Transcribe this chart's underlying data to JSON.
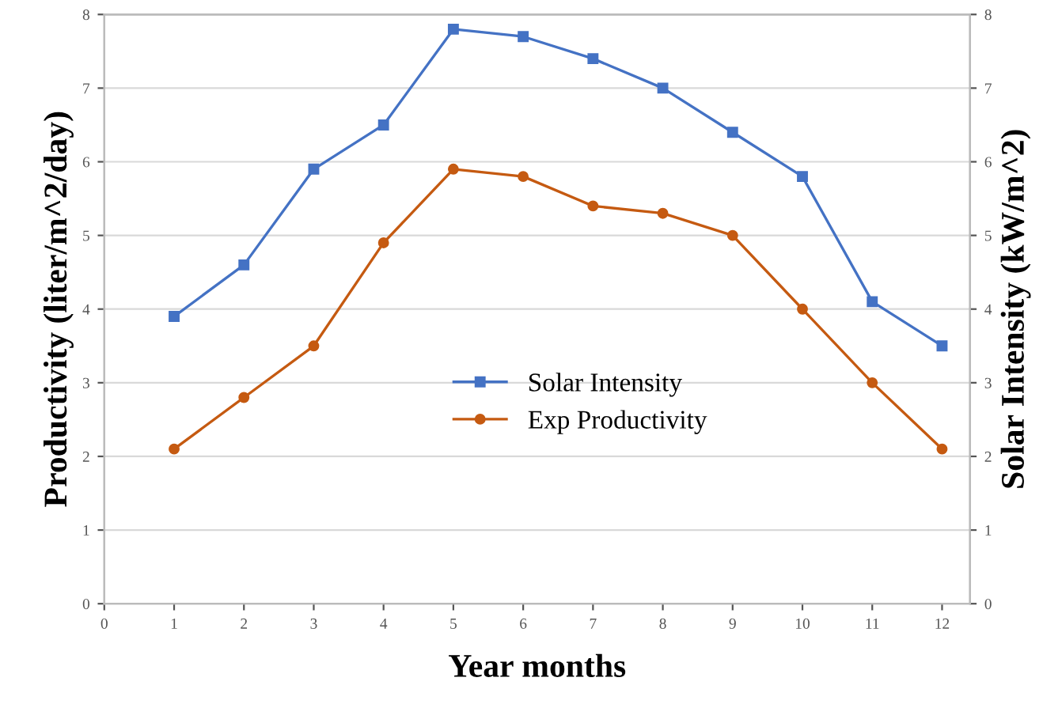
{
  "chart_data": {
    "type": "line",
    "xlabel": "Year months",
    "ylabel": "Productivity (liter/m^2/day)",
    "y2label": "Solar Intensity (kW/m^2)",
    "x": [
      1,
      2,
      3,
      4,
      5,
      6,
      7,
      8,
      9,
      10,
      11,
      12
    ],
    "series": [
      {
        "name": "Solar Intensity",
        "color": "#4472c4",
        "marker": "square",
        "values": [
          3.9,
          4.6,
          5.9,
          6.5,
          7.8,
          7.7,
          7.4,
          7.0,
          6.4,
          5.8,
          4.1,
          3.5
        ]
      },
      {
        "name": "Exp Productivity",
        "color": "#c55a11",
        "marker": "circle",
        "values": [
          2.1,
          2.8,
          3.5,
          4.9,
          5.9,
          5.8,
          5.4,
          5.3,
          5.0,
          4.0,
          3.0,
          2.1
        ]
      }
    ],
    "xlim": [
      0,
      12.4
    ],
    "xticks": [
      0,
      1,
      2,
      3,
      4,
      5,
      6,
      7,
      8,
      9,
      10,
      11,
      12
    ],
    "ylim": [
      0,
      8
    ],
    "yticks": [
      0,
      1,
      2,
      3,
      4,
      5,
      6,
      7,
      8
    ],
    "y2lim": [
      0,
      8
    ],
    "y2ticks": [
      0,
      1,
      2,
      3,
      4,
      5,
      6,
      7,
      8
    ],
    "grid": "y",
    "legend": "center",
    "line_style": "solid"
  }
}
